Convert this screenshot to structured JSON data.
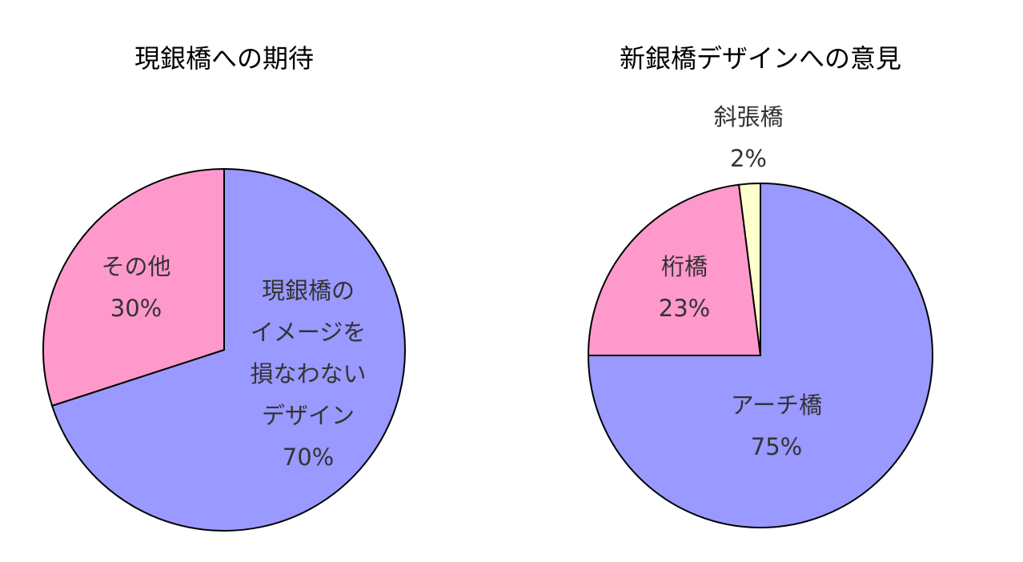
{
  "chart_data": [
    {
      "type": "pie",
      "title": "現銀橋への期待",
      "categories": [
        "現銀橋の\nイメージを\n損なわない\nデザイン",
        "その他"
      ],
      "values": [
        70,
        30
      ],
      "value_labels": [
        "70%",
        "30%"
      ],
      "colors": [
        "#9999ff",
        "#ff99cc"
      ]
    },
    {
      "type": "pie",
      "title": "新銀橋デザインへの意見",
      "categories": [
        "アーチ橋",
        "桁橋",
        "斜張橋"
      ],
      "values": [
        75,
        23,
        2
      ],
      "value_labels": [
        "75%",
        "23%",
        "2%"
      ],
      "colors": [
        "#9999ff",
        "#ff99cc",
        "#ffffcc"
      ]
    }
  ]
}
